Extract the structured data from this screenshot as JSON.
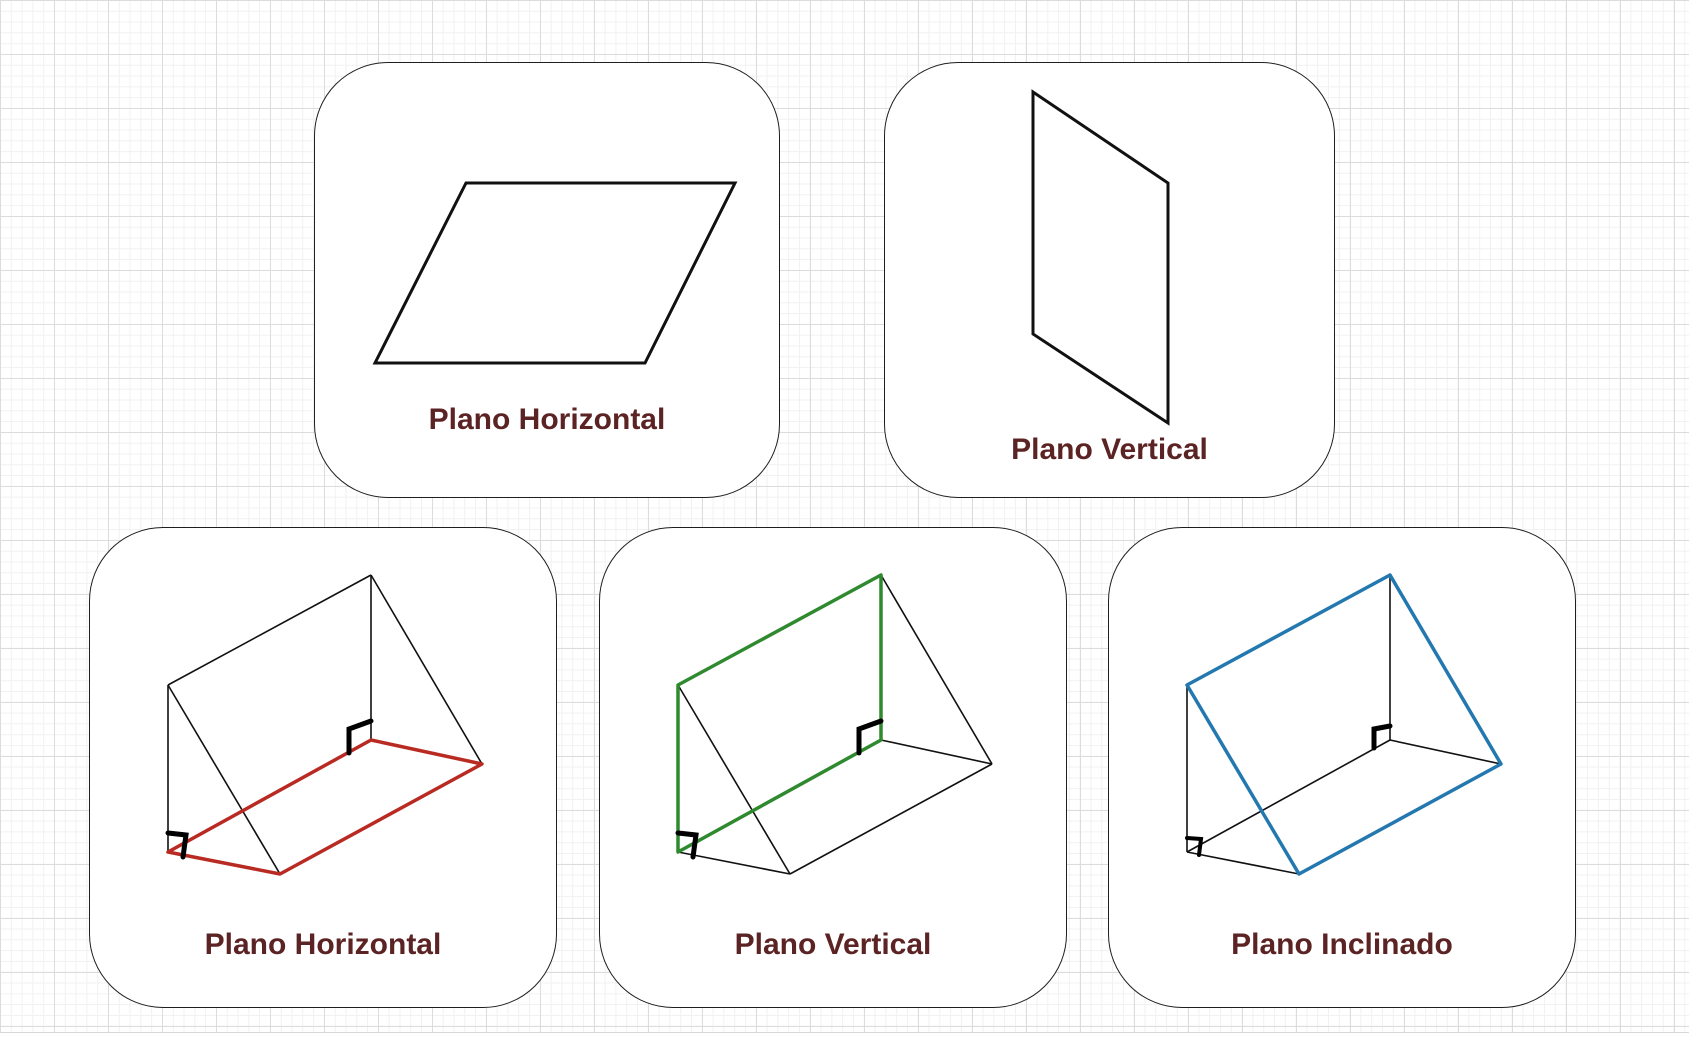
{
  "cards": [
    {
      "label": "Plano Horizontal"
    },
    {
      "label": "Plano Vertical"
    },
    {
      "label": "Plano Horizontal"
    },
    {
      "label": "Plano Vertical"
    },
    {
      "label": "Plano Inclinado"
    }
  ],
  "colors": {
    "label_text": "#5b2323",
    "highlight_horizontal": "#b82a22",
    "highlight_vertical": "#2f8a2f",
    "highlight_inclined": "#2478b0",
    "stroke": "#111111"
  }
}
